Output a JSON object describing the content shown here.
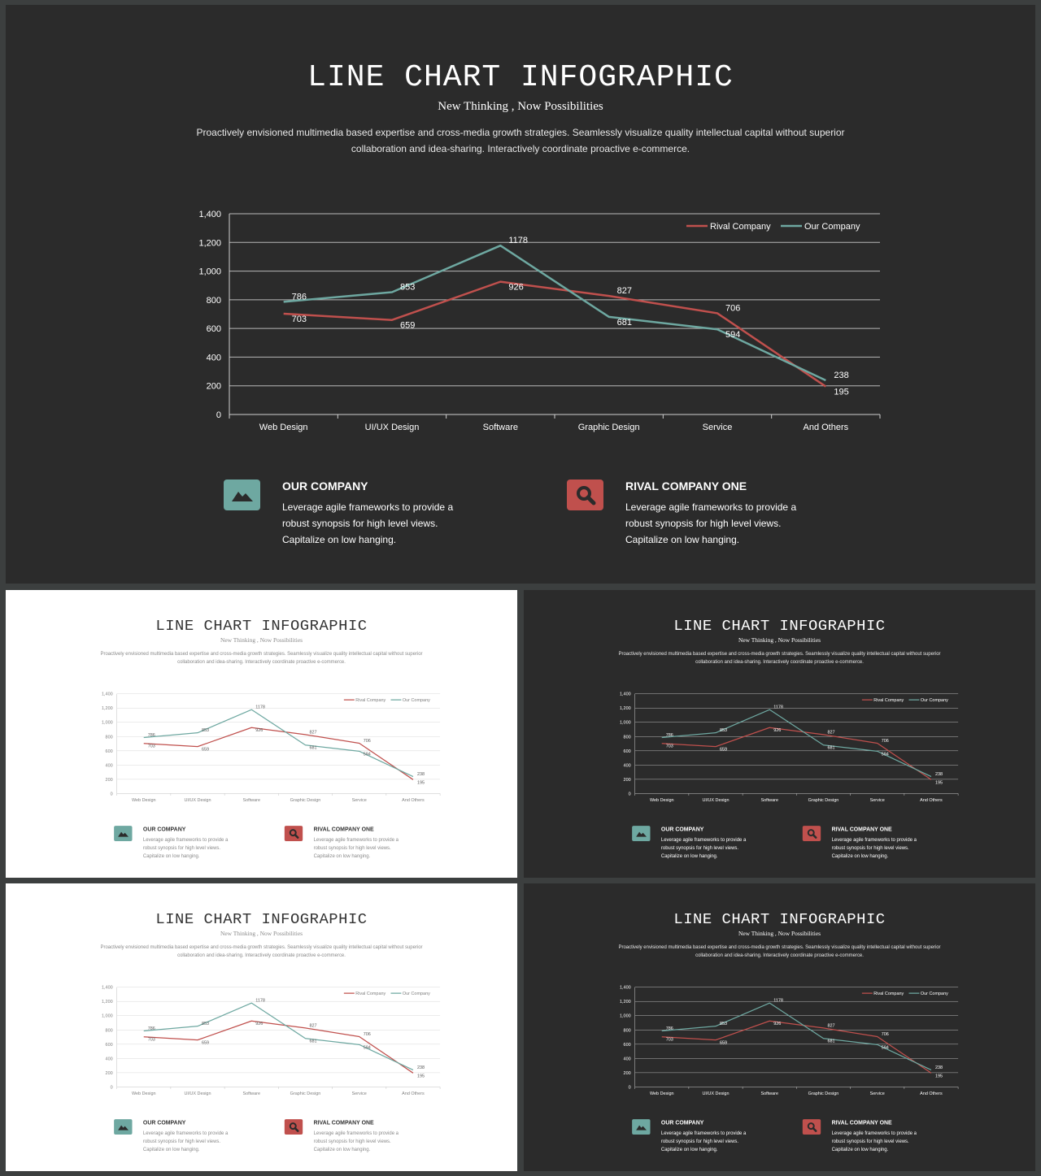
{
  "slide": {
    "title": "LINE CHART INFOGRAPHIC",
    "subtitle": "New Thinking , Now Possibilities",
    "description": "Proactively envisioned multimedia based expertise and cross-media growth strategies. Seamlessly visualize quality intellectual capital without superior collaboration and idea-sharing.  Interactively coordinate proactive e-commerce.",
    "cards": {
      "ours": {
        "heading": "OUR COMPANY",
        "text": "Leverage  agile frameworks to provide a robust synopsis for high level views. Capitalize on low hanging.",
        "icon": "mountain-image-icon"
      },
      "rival": {
        "heading": "RIVAL COMPANY ONE",
        "text": "Leverage  agile frameworks to provide a robust synopsis for high level views. Capitalize on low hanging.",
        "icon": "magnifier-icon"
      }
    }
  },
  "colors": {
    "rival": "#c0504d",
    "ours": "#6ea8a1",
    "dark_background": "#2b2b2b",
    "light_background": "#ffffff"
  },
  "slides": [
    {
      "theme": "dark"
    },
    {
      "theme": "light"
    },
    {
      "theme": "dark"
    },
    {
      "theme": "light"
    },
    {
      "theme": "dark"
    }
  ],
  "chart_data": {
    "type": "line",
    "categories": [
      "Web Design",
      "UI/UX Design",
      "Software",
      "Graphic Design",
      "Service",
      "And Others"
    ],
    "series": [
      {
        "name": "Rival Company",
        "values": [
          703,
          659,
          926,
          827,
          706,
          195
        ],
        "color": "#c0504d"
      },
      {
        "name": "Our Company",
        "values": [
          786,
          853,
          1178,
          681,
          594,
          238
        ],
        "color": "#6ea8a1"
      }
    ],
    "ylim": [
      0,
      1400
    ],
    "yticks": [
      "0",
      "200",
      "400",
      "600",
      "800",
      "1,000",
      "1,200",
      "1,400"
    ],
    "data_labels": true,
    "grid": true,
    "legend": "top-right"
  }
}
